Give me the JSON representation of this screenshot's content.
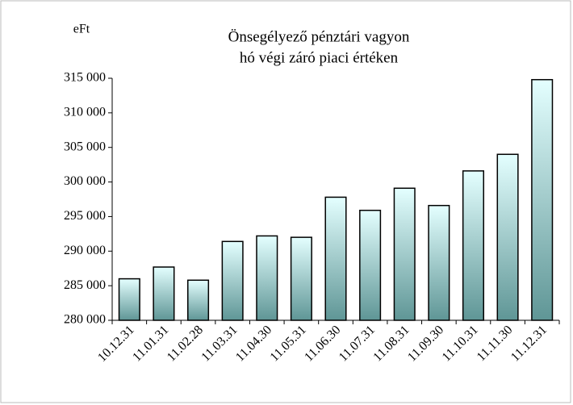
{
  "chart_data": {
    "type": "bar",
    "title": "Önsegélyező pénztári vagyon",
    "subtitle": "hó végi záró piaci értéken",
    "y_label": "eFt",
    "categories": [
      "10.12.31",
      "11.01.31",
      "11.02.28",
      "11.03.31",
      "11.04.30",
      "11.05.31",
      "11.06.30",
      "11.07.31",
      "11.08.31",
      "11.09.30",
      "11.10.31",
      "11.11.30",
      "11.12.31"
    ],
    "values": [
      286000,
      287700,
      285800,
      291400,
      292200,
      292000,
      297800,
      295900,
      299100,
      296600,
      301600,
      304000,
      314800
    ],
    "color": [
      "#e4ffff",
      "#5f9696"
    ],
    "ylim": [
      280000,
      315000
    ],
    "yticks": [
      {
        "value": 280000,
        "label": "280 000"
      },
      {
        "value": 285000,
        "label": "285 000"
      },
      {
        "value": 290000,
        "label": "290 000"
      },
      {
        "value": 295000,
        "label": "295 000"
      },
      {
        "value": 300000,
        "label": "300 000"
      },
      {
        "value": 305000,
        "label": "305 000"
      },
      {
        "value": 310000,
        "label": "310 000"
      },
      {
        "value": 315000,
        "label": "315 000"
      }
    ],
    "grid": false
  }
}
